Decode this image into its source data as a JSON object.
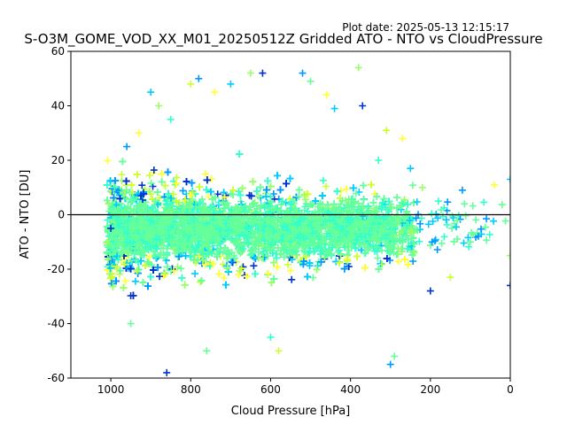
{
  "chart_data": {
    "type": "scatter",
    "title": "S-O3M_GOME_VOD_XX_M01_20250512Z Gridded ATO - NTO vs CloudPressure",
    "subtitle": "Plot date: 2025-05-13 12:15:17",
    "xlabel": "Cloud Pressure [hPa]",
    "ylabel": "ATO - NTO [DU]",
    "xlim": [
      1100,
      0
    ],
    "ylim": [
      -60,
      60
    ],
    "x_inverted": true,
    "x_ticks": [
      1000,
      800,
      600,
      400,
      200,
      0
    ],
    "y_ticks": [
      -60,
      -40,
      -20,
      0,
      20,
      40,
      60
    ],
    "reference_line_y": 0,
    "marker": "+",
    "grid": false,
    "colormap": [
      "#0033cc",
      "#0099ff",
      "#00ccff",
      "#33ffcc",
      "#66ff99",
      "#99ff66",
      "#ccff33",
      "#ffff33"
    ],
    "sample_points": [
      {
        "x": 1000,
        "y": -5
      },
      {
        "x": 990,
        "y": 10
      },
      {
        "x": 985,
        "y": -20
      },
      {
        "x": 960,
        "y": 25
      },
      {
        "x": 950,
        "y": -40
      },
      {
        "x": 930,
        "y": 30
      },
      {
        "x": 900,
        "y": 45
      },
      {
        "x": 880,
        "y": 40
      },
      {
        "x": 860,
        "y": -58
      },
      {
        "x": 850,
        "y": 35
      },
      {
        "x": 800,
        "y": 48
      },
      {
        "x": 780,
        "y": 50
      },
      {
        "x": 760,
        "y": -50
      },
      {
        "x": 740,
        "y": 45
      },
      {
        "x": 700,
        "y": 48
      },
      {
        "x": 650,
        "y": 52
      },
      {
        "x": 620,
        "y": 52
      },
      {
        "x": 600,
        "y": -45
      },
      {
        "x": 580,
        "y": -50
      },
      {
        "x": 520,
        "y": 52
      },
      {
        "x": 500,
        "y": 49
      },
      {
        "x": 460,
        "y": 44
      },
      {
        "x": 440,
        "y": 39
      },
      {
        "x": 380,
        "y": 54
      },
      {
        "x": 370,
        "y": 40
      },
      {
        "x": 330,
        "y": 20
      },
      {
        "x": 310,
        "y": 31
      },
      {
        "x": 300,
        "y": -55
      },
      {
        "x": 290,
        "y": -52
      },
      {
        "x": 270,
        "y": 28
      },
      {
        "x": 250,
        "y": 17
      },
      {
        "x": 220,
        "y": 10
      },
      {
        "x": 200,
        "y": -28
      },
      {
        "x": 180,
        "y": 5
      },
      {
        "x": 150,
        "y": -23
      },
      {
        "x": 120,
        "y": 9
      },
      {
        "x": 100,
        "y": -10
      },
      {
        "x": 40,
        "y": 11
      },
      {
        "x": 0,
        "y": 13
      },
      {
        "x": 0,
        "y": -15
      },
      {
        "x": 0,
        "y": -26
      }
    ]
  }
}
